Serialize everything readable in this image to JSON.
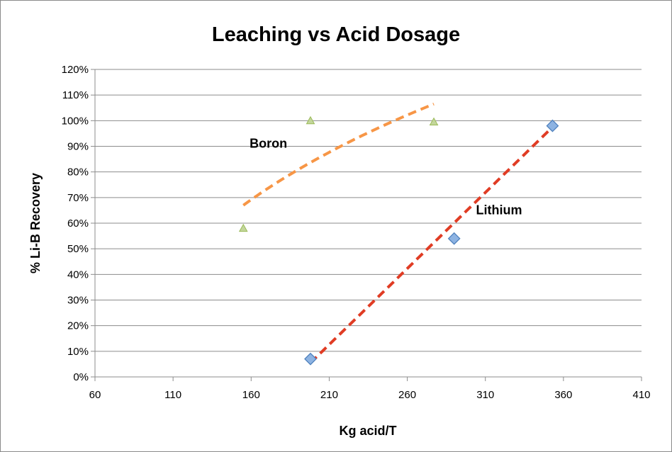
{
  "chart_data": {
    "type": "scatter",
    "title": "Leaching vs Acid Dosage",
    "xlabel": "Kg acid/T",
    "ylabel": "% Li-B Recovery",
    "xlim": [
      60,
      410
    ],
    "ylim": [
      0,
      1.2
    ],
    "xticks": [
      60,
      110,
      160,
      210,
      260,
      310,
      360,
      410
    ],
    "yticks": [
      0,
      0.1,
      0.2,
      0.3,
      0.4,
      0.5,
      0.6,
      0.7,
      0.8,
      0.9,
      1.0,
      1.1,
      1.2
    ],
    "ytick_labels": [
      "0%",
      "10%",
      "20%",
      "30%",
      "40%",
      "50%",
      "60%",
      "70%",
      "80%",
      "90%",
      "100%",
      "110%",
      "120%"
    ],
    "xtick_labels": [
      "60",
      "110",
      "160",
      "210",
      "260",
      "310",
      "360",
      "410"
    ],
    "grid": "horizontal",
    "series": [
      {
        "name": "Boron",
        "marker": "triangle",
        "color": "#9BBB59",
        "x": [
          155,
          198,
          277
        ],
        "y": [
          0.58,
          1.0,
          0.995
        ],
        "trendline": {
          "type": "logarithmic",
          "x_range": [
            155,
            277
          ],
          "y_range": [
            0.67,
            1.065
          ],
          "color": "#F79646"
        }
      },
      {
        "name": "Lithium",
        "marker": "diamond",
        "color": "#4F81BD",
        "x": [
          198,
          290,
          353
        ],
        "y": [
          0.07,
          0.54,
          0.98
        ],
        "trendline": {
          "type": "linear",
          "x_range": [
            198,
            353
          ],
          "y_range": [
            0.055,
            0.975
          ],
          "color": "#E03C24"
        }
      }
    ],
    "annotations": [
      {
        "text": "Boron",
        "x": 159,
        "y": 0.895
      },
      {
        "text": "Lithium",
        "x": 304,
        "y": 0.635
      }
    ]
  }
}
